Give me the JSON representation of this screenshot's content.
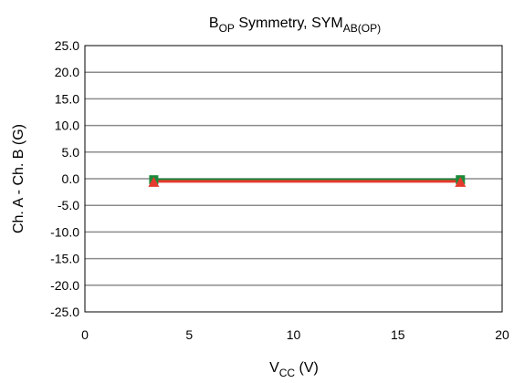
{
  "chart_data": {
    "type": "line",
    "title": {
      "main": "B",
      "main_sub": "OP",
      "rest": " Symmetry, SYM",
      "rest_sub": "AB(OP)"
    },
    "xlabel": {
      "main": "V",
      "sub": "CC",
      "rest": " (V)"
    },
    "ylabel": "Ch. A - Ch. B (G)",
    "xlim": [
      0,
      20
    ],
    "ylim": [
      -25,
      25
    ],
    "x_ticks": [
      "0",
      "5",
      "10",
      "15",
      "20"
    ],
    "y_ticks": [
      "25.0",
      "20.0",
      "15.0",
      "10.0",
      "5.0",
      "0.0",
      "-5.0",
      "-10.0",
      "-15.0",
      "-20.0",
      "-25.0"
    ],
    "grid": "horizontal",
    "legend": "none",
    "series": [
      {
        "marker": "square",
        "color": "#1a8a3a",
        "x": [
          3.3,
          18
        ],
        "y": [
          -0.2,
          -0.2
        ]
      },
      {
        "marker": "triangle",
        "color": "#e53a2e",
        "x": [
          3.3,
          18
        ],
        "y": [
          -0.5,
          -0.5
        ]
      }
    ]
  }
}
